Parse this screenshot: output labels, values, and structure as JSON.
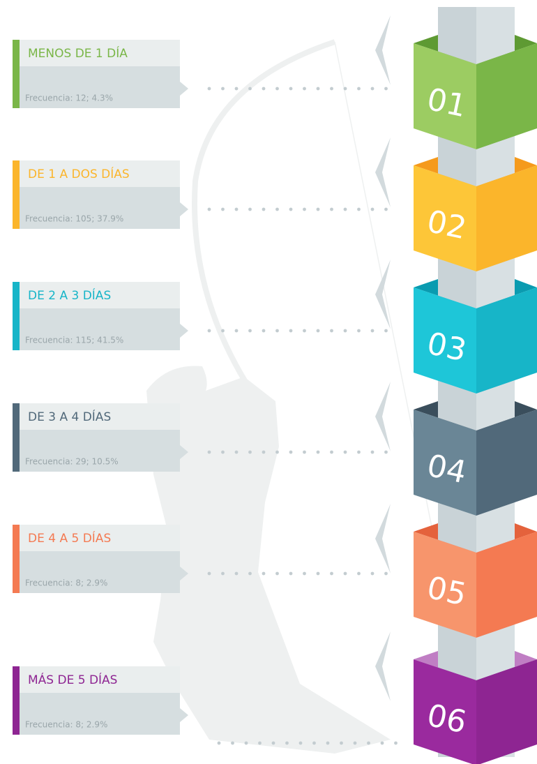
{
  "items": [
    {
      "title": "MENOS DE 1 DÍA",
      "frequency": "Frecuencia: 12; 4.3%",
      "number": "01",
      "color": "#7ab648",
      "dark": "#5e9a33",
      "light": "#9ccc62"
    },
    {
      "title": "DE 1 A DOS DÍAS",
      "frequency": "Frecuencia: 105; 37.9%",
      "number": "02",
      "color": "#fbb52b",
      "dark": "#f59a1c",
      "light": "#fdc638"
    },
    {
      "title": "DE 2 A 3 DÍAS",
      "frequency": "Frecuencia: 115; 41.5%",
      "number": "03",
      "color": "#17b5c8",
      "dark": "#0a9bb0",
      "light": "#1ec6d8"
    },
    {
      "title": "DE 3 A 4 DÍAS",
      "frequency": "Frecuencia: 29; 10.5%",
      "number": "04",
      "color": "#51697a",
      "dark": "#3a4e5c",
      "light": "#6a8696"
    },
    {
      "title": "DE 4 A 5 DÍAS",
      "frequency": "Frecuencia: 8; 2.9%",
      "number": "05",
      "color": "#f47a52",
      "dark": "#e4623c",
      "light": "#f7956c"
    },
    {
      "title": "MÁS DE 5 DÍAS",
      "frequency": "Frecuencia: 8; 2.9%",
      "number": "06",
      "color": "#8e2592",
      "dark": "#c07ec4",
      "light": "#9a2a9e"
    }
  ]
}
